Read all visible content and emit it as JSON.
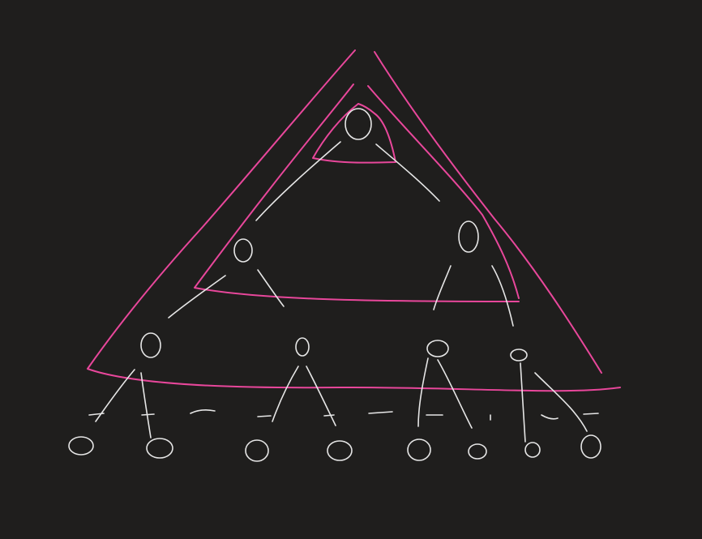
{
  "diagram": {
    "colors": {
      "background": "#1f1e1d",
      "node_stroke": "#e6e6e6",
      "region_stroke": "#e8479b"
    },
    "tree": {
      "levels": 4,
      "node_counts_per_level": [
        1,
        2,
        4,
        8
      ],
      "total_nodes": 15
    },
    "regions": [
      {
        "id": "top-subtree",
        "covers_levels": 1
      },
      {
        "id": "middle-subtree",
        "covers_levels": 2
      },
      {
        "id": "outer-subtree",
        "covers_levels": 3
      }
    ]
  }
}
